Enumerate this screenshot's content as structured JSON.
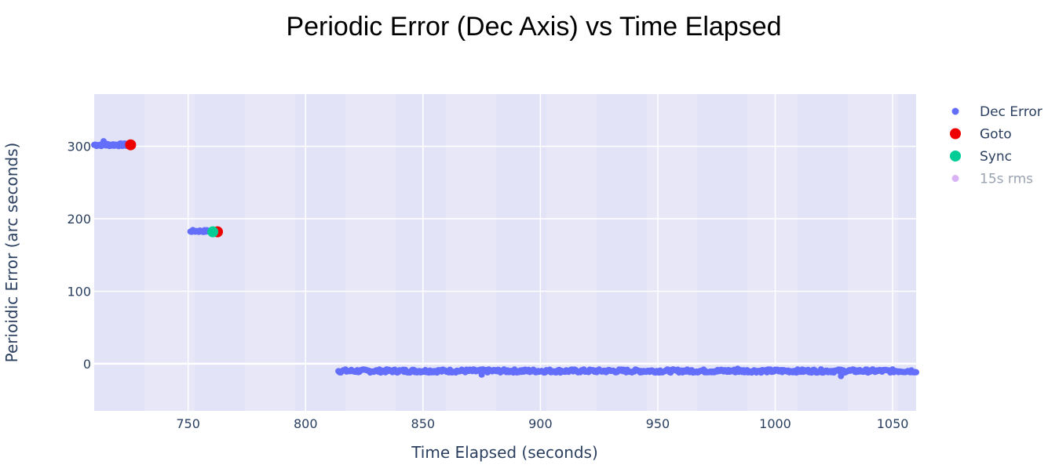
{
  "chart_data": {
    "type": "scatter",
    "title": "Periodic Error (Dec Axis) vs Time Elapsed",
    "xlabel": "Time Elapsed (seconds)",
    "ylabel": "Perioidic Error (arc seconds)",
    "xlim": [
      710,
      1060
    ],
    "ylim": [
      -65,
      372
    ],
    "x_ticks": [
      750,
      800,
      850,
      900,
      950,
      1000,
      1050
    ],
    "y_ticks": [
      0,
      100,
      200,
      300
    ],
    "grid": true,
    "legend_position": "top-right",
    "colors": {
      "plot_background": "#e5e5f7",
      "grid": "#ffffff"
    },
    "series": [
      {
        "name": "Dec Error",
        "color": "#636efa",
        "marker_size": 4,
        "segments": [
          {
            "x_start": 710,
            "x_end": 725,
            "y": 302,
            "jitter": 2
          },
          {
            "x_start": 751,
            "x_end": 762,
            "y": 183,
            "jitter": 1.5
          },
          {
            "x_start": 814,
            "x_end": 1060,
            "y": -10,
            "jitter": 2.2
          }
        ],
        "outliers": [
          [
            714,
            307
          ],
          [
            1028,
            -17
          ],
          [
            984,
            -7
          ],
          [
            875,
            -15
          ]
        ]
      },
      {
        "name": "Goto",
        "color": "#ef0000",
        "marker_size": 7,
        "points": [
          [
            725.5,
            302
          ],
          [
            762.5,
            182
          ]
        ]
      },
      {
        "name": "Sync",
        "color": "#00cc96",
        "marker_size": 7,
        "points": [
          [
            760.5,
            182
          ]
        ]
      },
      {
        "name": "15s rms",
        "color": "#dab3f5",
        "marker_size": 4,
        "visible": false,
        "points": []
      }
    ]
  }
}
